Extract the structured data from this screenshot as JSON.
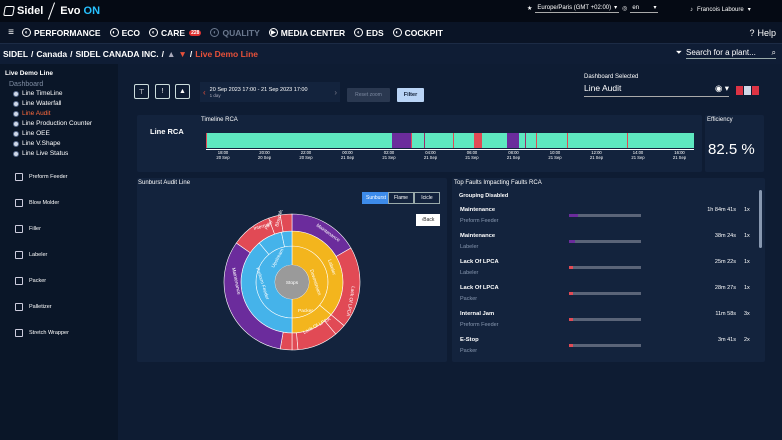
{
  "topbar": {
    "brand": "Sidel",
    "product_prefix": "Evo",
    "product_suffix": "ON",
    "timezone": "Europe/Paris (GMT +02:00)",
    "language": "en",
    "user": "Francois Laboure"
  },
  "nav": {
    "items": [
      {
        "label": "PERFORMANCE",
        "icon": "performance-icon"
      },
      {
        "label": "ECO",
        "icon": "eco-icon"
      },
      {
        "label": "CARE",
        "icon": "care-icon",
        "badge": "228"
      },
      {
        "label": "QUALITY",
        "icon": "quality-icon"
      },
      {
        "label": "MEDIA CENTER",
        "icon": "media-icon"
      },
      {
        "label": "EDS",
        "icon": "eds-icon"
      },
      {
        "label": "COCKPIT",
        "icon": "cockpit-icon"
      }
    ],
    "help": "Help"
  },
  "breadcrumb": {
    "c1": "SIDEL",
    "c2": "Canada",
    "c3": "SIDEL CANADA INC.",
    "current": "Live Demo Line"
  },
  "search": {
    "placeholder": "Search for a plant..."
  },
  "sidebar": {
    "title": "Live Demo Line",
    "section": "Dashboard",
    "items": [
      "Line TimeLine",
      "Line Waterfall",
      "Line Audit",
      "Line Production Counter",
      "Line OEE",
      "Line V.Shape",
      "Line Live Status"
    ],
    "active": "Line Audit",
    "machines": [
      "Preform Feeder",
      "Blow Molder",
      "Filler",
      "Labeler",
      "Packer",
      "Palletizer",
      "Stretch Wrapper"
    ]
  },
  "toolbar": {
    "date_range": "20 Sep 2023 17:00 - 21 Sep 2023 17:00",
    "duration": "1 day",
    "reset": "Reset zoom",
    "filter": "Filter"
  },
  "dashboard_select": {
    "label": "Dashboard Selected",
    "value": "Line Audit"
  },
  "rca": {
    "label": "Line RCA",
    "title": "Timeline RCA",
    "ticks": [
      [
        "18:00",
        "20 Sep"
      ],
      [
        "20:00",
        "20 Sep"
      ],
      [
        "22:00",
        "20 Sep"
      ],
      [
        "00:00",
        "21 Sep"
      ],
      [
        "02:00",
        "21 Sep"
      ],
      [
        "04:00",
        "21 Sep"
      ],
      [
        "06:00",
        "21 Sep"
      ],
      [
        "08:00",
        "21 Sep"
      ],
      [
        "10:00",
        "21 Sep"
      ],
      [
        "12:00",
        "21 Sep"
      ],
      [
        "14:00",
        "21 Sep"
      ],
      [
        "16:00",
        "21 Sep"
      ]
    ],
    "colors": {
      "run": "#5ee8c0",
      "planned": "#6b2c9c",
      "fault": "#e14a55",
      "other": "#9e2a6b"
    }
  },
  "efficiency": {
    "label": "Efficiency",
    "value": "82.5 %"
  },
  "sunburst": {
    "title": "Sunburst Audit Line",
    "tabs": [
      "Sunburst",
      "Flame",
      "Icicle"
    ],
    "active_tab": "Sunburst",
    "back": "Back",
    "center": "Stops",
    "inner": [
      "Downstream",
      "Upstream"
    ],
    "mid": [
      "Labeler",
      "Packer",
      "Preform Feeder",
      "Filler",
      "Blow Molder"
    ],
    "outer": [
      "Maintenance",
      "Lack Of LPCA",
      "Lack Of LPCA",
      "Maintenance",
      "Internal"
    ]
  },
  "faults": {
    "title": "Top Faults Impacting Faults RCA",
    "grouping": "Grouping Disabled",
    "rows": [
      {
        "name": "Maintenance",
        "sub": "Preform Feeder",
        "duration": "1h 84m 41s",
        "count": "1x",
        "fill": 0.12,
        "color": "#6b2c9c"
      },
      {
        "name": "Maintenance",
        "sub": "Labeler",
        "duration": "38m 24s",
        "count": "1x",
        "fill": 0.08,
        "color": "#6b2c9c"
      },
      {
        "name": "Lack Of LPCA",
        "sub": "Labeler",
        "duration": "25m 22s",
        "count": "1x",
        "fill": 0.06,
        "color": "#e14a55"
      },
      {
        "name": "Lack Of LPCA",
        "sub": "Packer",
        "duration": "28m 27s",
        "count": "1x",
        "fill": 0.05,
        "color": "#e14a55"
      },
      {
        "name": "Internal Jam",
        "sub": "Preform Feeder",
        "duration": "11m 58s",
        "count": "3x",
        "fill": 0.05,
        "color": "#e14a55"
      },
      {
        "name": "E-Stop",
        "sub": "Packer",
        "duration": "3m 41s",
        "count": "2x",
        "fill": 0.05,
        "color": "#e14a55"
      }
    ]
  }
}
